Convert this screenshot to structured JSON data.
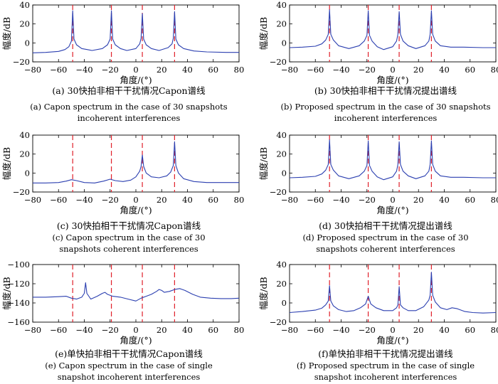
{
  "figure": {
    "panels": [
      {
        "caption_cn": "(a) 30快拍非相干干扰情况Capon谱线",
        "caption_en": [
          "(a) Capon spectrum in the case of 30 snapshots",
          "incoherent interferences"
        ]
      },
      {
        "caption_cn": "(b) 30快拍非相干干扰情况提出谱线",
        "caption_en": [
          "(b) Proposed spectrum in the case of 30 snapshots",
          "incoherent interferences"
        ]
      },
      {
        "caption_cn": "(c) 30快拍相干干扰情况Capon谱线",
        "caption_en": [
          "(c) Capon spectrum in the case of 30",
          "snapshots coherent interferences"
        ]
      },
      {
        "caption_cn": "(d) 30快拍相干干扰情况提出谱线",
        "caption_en": [
          "(d) Proposed spectrum in the case of 30",
          "snapshots coherent interferences"
        ]
      },
      {
        "caption_cn": "(e)单快拍非相干干扰情况Capon谱线",
        "caption_en": [
          "(e) Capon spectrum in the case of single",
          "snapshot incoherent interferences"
        ]
      },
      {
        "caption_cn": "(f)单快拍非相干干扰情况提出谱线",
        "caption_en": [
          "(f) Proposed spectrum in the case of single",
          "snapshot incoherent interferences"
        ]
      }
    ]
  },
  "colors": {
    "spectrum": "#2b3fb0",
    "marker": "#e0202a",
    "axis": "#000000"
  },
  "chart_data": [
    {
      "type": "line",
      "xlabel": "角度/(°)",
      "ylabel": "幅度/dB",
      "xlim": [
        -80,
        80
      ],
      "ylim": [
        -20,
        40
      ],
      "xticks": [
        -80,
        -60,
        -40,
        -20,
        0,
        20,
        40,
        60,
        80
      ],
      "yticks": [
        -20,
        0,
        20,
        40
      ],
      "markers": [
        -49,
        -19,
        5,
        30
      ],
      "series": [
        {
          "x": [
            -80,
            -70,
            -60,
            -55,
            -52,
            -50,
            -49,
            -48,
            -46,
            -42,
            -34,
            -26,
            -22,
            -20,
            -19,
            -18,
            -16,
            -12,
            -7,
            0,
            3,
            4,
            5,
            6,
            8,
            12,
            18,
            25,
            28,
            29,
            30,
            31,
            33,
            37,
            45,
            55,
            70,
            80
          ],
          "y": [
            -10.5,
            -10,
            -9,
            -7,
            -4,
            2,
            34,
            4,
            -2,
            -6,
            -8,
            -6,
            -2,
            4,
            34,
            4,
            -2,
            -6,
            -8,
            -6,
            -1,
            5,
            31,
            4,
            -2,
            -6,
            -8,
            -5,
            -1,
            5,
            33,
            4,
            -2,
            -6,
            -8.5,
            -9.5,
            -10,
            -10
          ]
        }
      ]
    },
    {
      "type": "line",
      "xlabel": "角度/(°)",
      "ylabel": "幅度/dB",
      "xlim": [
        -80,
        80
      ],
      "ylim": [
        -20,
        40
      ],
      "xticks": [
        -80,
        -60,
        -40,
        -20,
        0,
        20,
        40,
        60,
        80
      ],
      "yticks": [
        -20,
        0,
        20,
        40
      ],
      "markers": [
        -49,
        -19,
        5,
        30
      ],
      "series": [
        {
          "x": [
            -80,
            -70,
            -60,
            -55,
            -52,
            -50,
            -49,
            -48,
            -46,
            -42,
            -34,
            -26,
            -22,
            -20,
            -19,
            -18,
            -16,
            -12,
            -7,
            0,
            3,
            4,
            5,
            6,
            8,
            12,
            18,
            25,
            28,
            29,
            30,
            31,
            33,
            37,
            45,
            55,
            70,
            80
          ],
          "y": [
            -5,
            -4.5,
            -3.5,
            -1,
            3,
            9,
            35,
            9,
            3,
            -3,
            -6,
            -3,
            2,
            8,
            34,
            8,
            2,
            -4,
            -7,
            -4,
            2,
            9,
            33,
            9,
            2,
            -3,
            -6,
            -3,
            2,
            9,
            34,
            9,
            2,
            -3,
            -4.5,
            -4.5,
            -5,
            -5
          ]
        }
      ]
    },
    {
      "type": "line",
      "xlabel": "角度/(°)",
      "ylabel": "幅度/dB",
      "xlim": [
        -80,
        80
      ],
      "ylim": [
        -20,
        40
      ],
      "xticks": [
        -80,
        -60,
        -40,
        -20,
        0,
        20,
        40,
        60,
        80
      ],
      "yticks": [
        -20,
        0,
        20,
        40
      ],
      "markers": [
        -49,
        -19,
        5,
        30
      ],
      "series": [
        {
          "x": [
            -80,
            -70,
            -60,
            -54,
            -50,
            -46,
            -40,
            -32,
            -25,
            -20,
            -16,
            -10,
            -4,
            0,
            3,
            4,
            5,
            6,
            8,
            12,
            18,
            24,
            27,
            29,
            30,
            31,
            33,
            37,
            45,
            55,
            70,
            80
          ],
          "y": [
            -10.5,
            -10.5,
            -10,
            -8.5,
            -7,
            -8,
            -10,
            -10.5,
            -8.5,
            -6.5,
            -8,
            -9,
            -7.5,
            -4,
            2,
            7,
            19,
            7,
            0,
            -4,
            -5,
            -3,
            1,
            8,
            33,
            8,
            0,
            -6,
            -9,
            -10,
            -10,
            -10
          ]
        }
      ]
    },
    {
      "type": "line",
      "xlabel": "角度/(°)",
      "ylabel": "幅度/dB",
      "xlim": [
        -80,
        80
      ],
      "ylim": [
        -20,
        40
      ],
      "xticks": [
        -80,
        -60,
        -40,
        -20,
        0,
        20,
        40,
        60,
        80
      ],
      "yticks": [
        -20,
        0,
        20,
        40
      ],
      "markers": [
        -49,
        -19,
        5,
        30
      ],
      "series": [
        {
          "x": [
            -80,
            -70,
            -60,
            -55,
            -52,
            -50,
            -49,
            -48,
            -46,
            -42,
            -34,
            -26,
            -22,
            -20,
            -19,
            -18,
            -16,
            -12,
            -7,
            0,
            3,
            4,
            5,
            6,
            8,
            12,
            18,
            25,
            28,
            29,
            30,
            31,
            33,
            37,
            45,
            55,
            70,
            80
          ],
          "y": [
            -5,
            -4.5,
            -3.5,
            -1,
            3,
            9,
            35,
            9,
            3,
            -3,
            -6,
            -3,
            2,
            8,
            34,
            8,
            2,
            -4,
            -7,
            -4,
            2,
            9,
            33,
            9,
            2,
            -3,
            -6,
            -3,
            2,
            9,
            34,
            9,
            2,
            -3,
            -4.5,
            -4.5,
            -5,
            -5
          ]
        }
      ]
    },
    {
      "type": "line",
      "xlabel": "角度/(°)",
      "ylabel": "幅度/dB",
      "xlim": [
        -80,
        80
      ],
      "ylim": [
        -160,
        -100
      ],
      "xticks": [
        -80,
        -60,
        -40,
        -20,
        0,
        20,
        40,
        60,
        80
      ],
      "yticks": [
        -160,
        -140,
        -120,
        -100
      ],
      "markers": [
        -49,
        -19,
        5,
        30
      ],
      "series": [
        {
          "x": [
            -80,
            -70,
            -60,
            -54,
            -50,
            -46,
            -42,
            -40,
            -39,
            -38,
            -35,
            -30,
            -26,
            -24,
            -22,
            -18,
            -12,
            -6,
            0,
            4,
            8,
            12,
            16,
            18,
            20,
            22,
            26,
            30,
            34,
            38,
            44,
            50,
            58,
            66,
            74,
            80
          ],
          "y": [
            -134,
            -134,
            -133.5,
            -133,
            -135,
            -136,
            -134,
            -130,
            -119,
            -130,
            -136,
            -133,
            -130,
            -129,
            -131,
            -133,
            -134,
            -136,
            -138,
            -135,
            -133,
            -131,
            -128,
            -126,
            -127,
            -129,
            -128,
            -126,
            -125,
            -127,
            -131,
            -134,
            -135,
            -135.5,
            -135.5,
            -135
          ]
        }
      ]
    },
    {
      "type": "line",
      "xlabel": "角度/(°)",
      "ylabel": "幅度/dB",
      "xlim": [
        -80,
        80
      ],
      "ylim": [
        -20,
        40
      ],
      "xticks": [
        -80,
        -60,
        -40,
        -20,
        0,
        20,
        40,
        60,
        80
      ],
      "yticks": [
        -20,
        0,
        20,
        40
      ],
      "markers": [
        -49,
        -19,
        5,
        30
      ],
      "series": [
        {
          "x": [
            -80,
            -70,
            -60,
            -55,
            -52,
            -50,
            -49,
            -48,
            -46,
            -42,
            -36,
            -30,
            -25,
            -21,
            -19,
            -17,
            -13,
            -7,
            0,
            3,
            4,
            5,
            6,
            8,
            12,
            18,
            24,
            28,
            29,
            30,
            31,
            33,
            37,
            42,
            46,
            50,
            56,
            62,
            70,
            80
          ],
          "y": [
            -10,
            -9,
            -7.5,
            -5.5,
            -2,
            2,
            18,
            2,
            -3,
            -7,
            -9,
            -8,
            -5,
            -1,
            7,
            -1,
            -5,
            -8,
            -8,
            -5,
            -2,
            17,
            -2,
            -5,
            -8,
            -8,
            -4,
            3,
            8,
            32,
            8,
            1,
            -5,
            -7,
            -5,
            -6,
            -9,
            -10,
            -10.5,
            -10
          ]
        }
      ]
    }
  ]
}
